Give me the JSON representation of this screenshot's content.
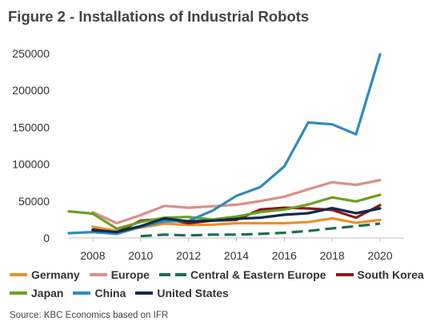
{
  "figure": {
    "title": "Figure 2 - Installations of Industrial Robots",
    "source": "Source: KBC Economics based on IFR"
  },
  "chart_data": {
    "type": "line",
    "title": "Figure 2 - Installations of Industrial Robots",
    "xlabel": "",
    "ylabel": "",
    "xlim": [
      2007,
      2021
    ],
    "ylim": [
      0,
      250000
    ],
    "x_ticks": [
      2008,
      2010,
      2012,
      2014,
      2016,
      2018,
      2020
    ],
    "y_ticks": [
      0,
      50000,
      100000,
      150000,
      200000,
      250000
    ],
    "x_tick_labels": [
      "2008",
      "2010",
      "2012",
      "2014",
      "2016",
      "2018",
      "2020"
    ],
    "y_tick_labels": [
      "0",
      "50000",
      "100000",
      "150000",
      "200000",
      "250000"
    ],
    "grid": false,
    "legend_position": "bottom",
    "series": [
      {
        "name": "Germany",
        "color": "#E8922C",
        "dashed": false,
        "x": [
          2008,
          2009,
          2010,
          2011,
          2012,
          2013,
          2014,
          2015,
          2016,
          2017,
          2018,
          2019,
          2020
        ],
        "values": [
          15000,
          9500,
          14000,
          19500,
          17500,
          18000,
          20000,
          20000,
          20000,
          21500,
          26500,
          20500,
          24500
        ]
      },
      {
        "name": "Europe",
        "color": "#DB8F86",
        "dashed": false,
        "x": [
          2008,
          2009,
          2010,
          2011,
          2012,
          2013,
          2014,
          2015,
          2016,
          2017,
          2018,
          2019,
          2020
        ],
        "values": [
          35000,
          20000,
          31000,
          43500,
          41000,
          43000,
          45000,
          50000,
          56000,
          66000,
          75500,
          72000,
          78500
        ]
      },
      {
        "name": "Central & Eastern Europe",
        "color": "#1B6E52",
        "dashed": true,
        "x": [
          2010,
          2011,
          2012,
          2013,
          2014,
          2015,
          2016,
          2017,
          2018,
          2019,
          2020
        ],
        "values": [
          2500,
          4500,
          3500,
          4500,
          4500,
          5500,
          7000,
          9500,
          13000,
          16000,
          19500
        ]
      },
      {
        "name": "South Korea",
        "color": "#8B1A1A",
        "dashed": false,
        "x": [
          2008,
          2009,
          2010,
          2011,
          2012,
          2013,
          2014,
          2015,
          2016,
          2017,
          2018,
          2019,
          2020
        ],
        "values": [
          11500,
          7500,
          23500,
          26000,
          20000,
          23500,
          24500,
          38500,
          41000,
          40000,
          38000,
          27500,
          44500
        ]
      },
      {
        "name": "Japan",
        "color": "#6AA121",
        "dashed": false,
        "x": [
          2007,
          2008,
          2009,
          2010,
          2011,
          2012,
          2013,
          2014,
          2015,
          2016,
          2017,
          2018,
          2019,
          2020
        ],
        "values": [
          36000,
          33000,
          12500,
          21500,
          27500,
          28500,
          25000,
          29000,
          35000,
          38500,
          45500,
          55000,
          49500,
          58500
        ]
      },
      {
        "name": "China",
        "color": "#2E8BBF",
        "dashed": false,
        "x": [
          2007,
          2008,
          2009,
          2010,
          2011,
          2012,
          2013,
          2014,
          2015,
          2016,
          2017,
          2018,
          2019,
          2020
        ],
        "values": [
          6500,
          8000,
          5500,
          15000,
          22500,
          23000,
          37000,
          57000,
          69000,
          97000,
          156500,
          154000,
          140500,
          249000
        ]
      },
      {
        "name": "United States",
        "color": "#102A4C",
        "dashed": false,
        "x": [
          2008,
          2009,
          2010,
          2011,
          2012,
          2013,
          2014,
          2015,
          2016,
          2017,
          2018,
          2019,
          2020
        ],
        "values": [
          10500,
          8000,
          16000,
          26500,
          22500,
          23500,
          26000,
          27500,
          31500,
          33500,
          40500,
          33500,
          40000
        ]
      }
    ]
  }
}
